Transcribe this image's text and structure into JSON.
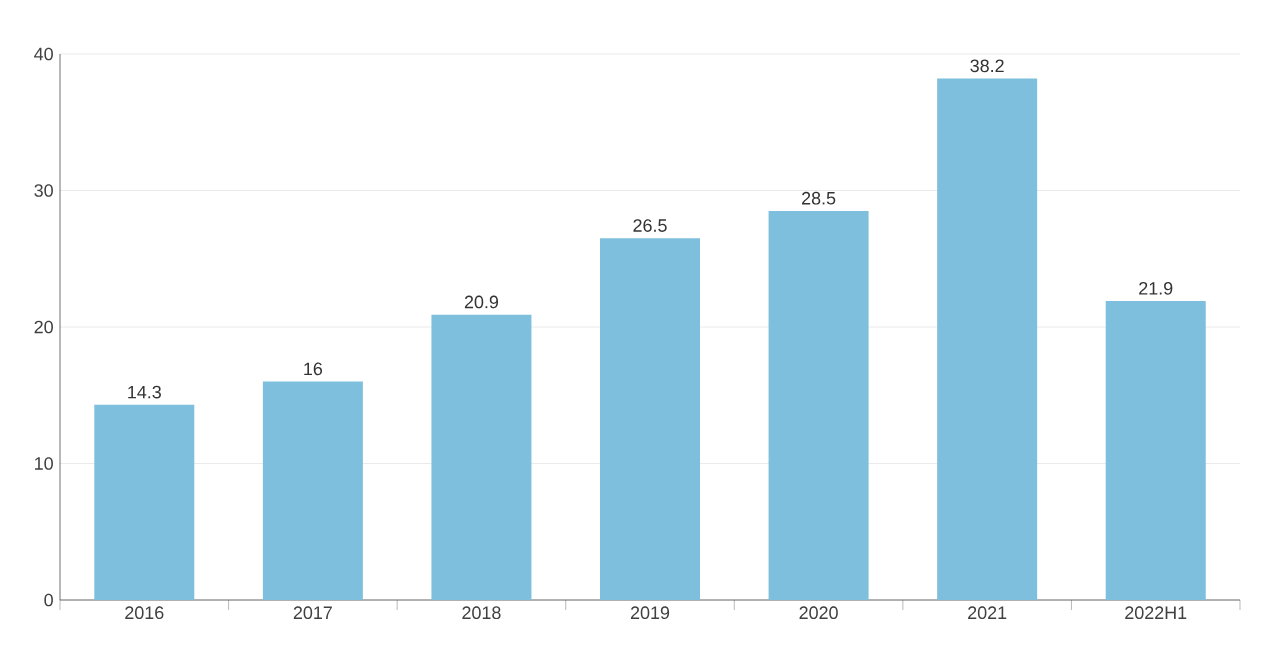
{
  "chart_data": {
    "type": "bar",
    "categories": [
      "2016",
      "2017",
      "2018",
      "2019",
      "2020",
      "2021",
      "2022H1"
    ],
    "values": [
      14.3,
      16,
      20.9,
      26.5,
      28.5,
      38.2,
      21.9
    ],
    "color": "#7dbfdc",
    "ylim": [
      0,
      40
    ],
    "yticks": [
      0,
      10,
      20,
      30,
      40
    ],
    "grid": "y",
    "data_labels": true
  }
}
